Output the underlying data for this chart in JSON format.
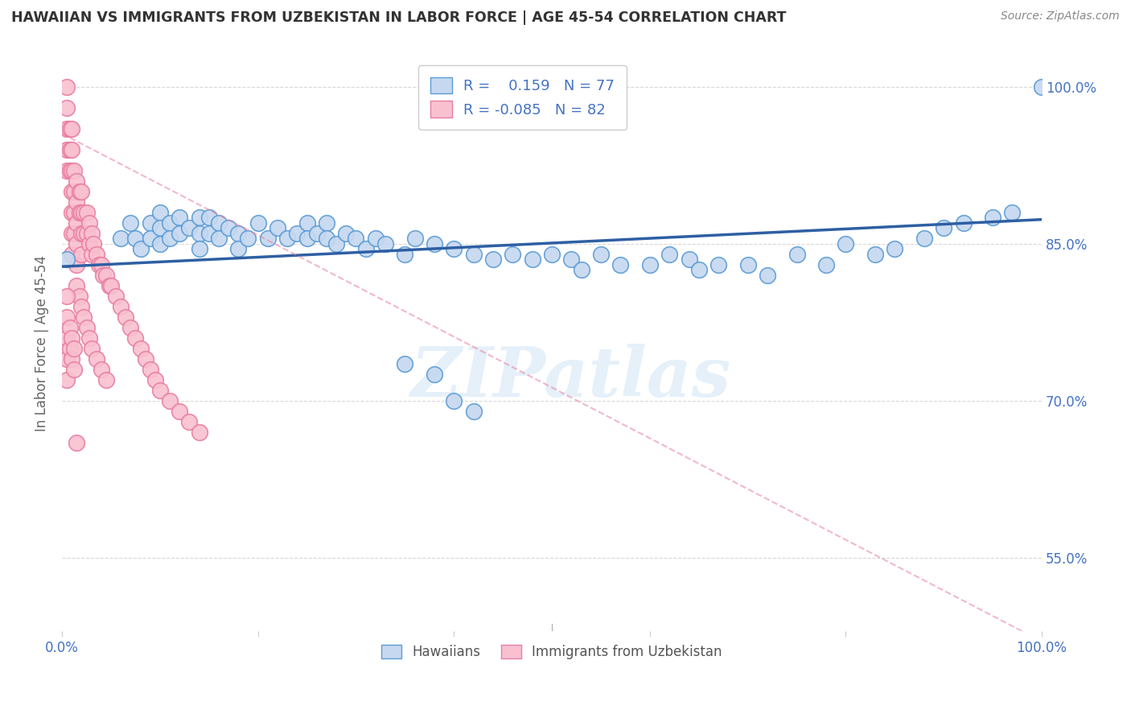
{
  "title": "HAWAIIAN VS IMMIGRANTS FROM UZBEKISTAN IN LABOR FORCE | AGE 45-54 CORRELATION CHART",
  "source": "Source: ZipAtlas.com",
  "ylabel": "In Labor Force | Age 45-54",
  "r_hawaiian": 0.159,
  "n_hawaiian": 77,
  "r_uzbekistan": -0.085,
  "n_uzbekistan": 82,
  "xlim": [
    0.0,
    1.0
  ],
  "ylim": [
    0.48,
    1.03
  ],
  "yticks": [
    0.55,
    0.7,
    0.85,
    1.0
  ],
  "ytick_labels": [
    "55.0%",
    "70.0%",
    "85.0%",
    "100.0%"
  ],
  "xticks": [
    0.0,
    0.2,
    0.4,
    0.6,
    0.8,
    1.0
  ],
  "xtick_labels": [
    "0.0%",
    "",
    "",
    "",
    "",
    "100.0%"
  ],
  "color_hawaiian": "#c5d8f0",
  "color_uzbekistan": "#f9c0d0",
  "edge_hawaiian": "#5b9bd5",
  "edge_uzbekistan": "#e87ea1",
  "line_hawaiian": "#2e5fa3",
  "line_uzbekistan": "#f4a7b9",
  "watermark_text": "ZIPatlas",
  "background_color": "#ffffff",
  "grid_color": "#d8d8d8",
  "hawaiian_x": [
    0.005,
    0.06,
    0.07,
    0.075,
    0.08,
    0.09,
    0.09,
    0.1,
    0.1,
    0.1,
    0.11,
    0.11,
    0.12,
    0.12,
    0.13,
    0.14,
    0.14,
    0.14,
    0.15,
    0.15,
    0.16,
    0.16,
    0.17,
    0.18,
    0.18,
    0.19,
    0.2,
    0.21,
    0.22,
    0.23,
    0.24,
    0.25,
    0.25,
    0.26,
    0.27,
    0.27,
    0.28,
    0.29,
    0.3,
    0.31,
    0.32,
    0.33,
    0.35,
    0.36,
    0.38,
    0.4,
    0.42,
    0.44,
    0.46,
    0.48,
    0.5,
    0.52,
    0.53,
    0.55,
    0.57,
    0.6,
    0.62,
    0.64,
    0.65,
    0.67,
    0.7,
    0.72,
    0.75,
    0.78,
    0.8,
    0.83,
    0.85,
    0.88,
    0.9,
    0.92,
    0.95,
    0.97,
    1.0,
    0.35,
    0.38,
    0.4,
    0.42
  ],
  "hawaiian_y": [
    0.835,
    0.855,
    0.87,
    0.855,
    0.845,
    0.87,
    0.855,
    0.88,
    0.865,
    0.85,
    0.87,
    0.855,
    0.875,
    0.86,
    0.865,
    0.875,
    0.86,
    0.845,
    0.875,
    0.86,
    0.87,
    0.855,
    0.865,
    0.86,
    0.845,
    0.855,
    0.87,
    0.855,
    0.865,
    0.855,
    0.86,
    0.87,
    0.855,
    0.86,
    0.87,
    0.855,
    0.85,
    0.86,
    0.855,
    0.845,
    0.855,
    0.85,
    0.84,
    0.855,
    0.85,
    0.845,
    0.84,
    0.835,
    0.84,
    0.835,
    0.84,
    0.835,
    0.825,
    0.84,
    0.83,
    0.83,
    0.84,
    0.835,
    0.825,
    0.83,
    0.83,
    0.82,
    0.84,
    0.83,
    0.85,
    0.84,
    0.845,
    0.855,
    0.865,
    0.87,
    0.875,
    0.88,
    1.0,
    0.735,
    0.725,
    0.7,
    0.69
  ],
  "uzbekistan_x": [
    0.005,
    0.005,
    0.005,
    0.005,
    0.005,
    0.008,
    0.008,
    0.008,
    0.01,
    0.01,
    0.01,
    0.01,
    0.01,
    0.01,
    0.01,
    0.012,
    0.012,
    0.012,
    0.012,
    0.015,
    0.015,
    0.015,
    0.015,
    0.015,
    0.018,
    0.018,
    0.02,
    0.02,
    0.02,
    0.02,
    0.022,
    0.022,
    0.025,
    0.025,
    0.028,
    0.028,
    0.03,
    0.03,
    0.032,
    0.035,
    0.038,
    0.04,
    0.042,
    0.045,
    0.048,
    0.05,
    0.055,
    0.06,
    0.065,
    0.07,
    0.075,
    0.08,
    0.085,
    0.09,
    0.095,
    0.1,
    0.11,
    0.12,
    0.13,
    0.14,
    0.015,
    0.018,
    0.02,
    0.022,
    0.025,
    0.028,
    0.03,
    0.035,
    0.04,
    0.045,
    0.005,
    0.005,
    0.005,
    0.005,
    0.005,
    0.008,
    0.008,
    0.01,
    0.01,
    0.012,
    0.012,
    0.015
  ],
  "uzbekistan_y": [
    1.0,
    0.98,
    0.96,
    0.94,
    0.92,
    0.96,
    0.94,
    0.92,
    0.96,
    0.94,
    0.92,
    0.9,
    0.88,
    0.86,
    0.84,
    0.92,
    0.9,
    0.88,
    0.86,
    0.91,
    0.89,
    0.87,
    0.85,
    0.83,
    0.9,
    0.88,
    0.9,
    0.88,
    0.86,
    0.84,
    0.88,
    0.86,
    0.88,
    0.86,
    0.87,
    0.85,
    0.86,
    0.84,
    0.85,
    0.84,
    0.83,
    0.83,
    0.82,
    0.82,
    0.81,
    0.81,
    0.8,
    0.79,
    0.78,
    0.77,
    0.76,
    0.75,
    0.74,
    0.73,
    0.72,
    0.71,
    0.7,
    0.69,
    0.68,
    0.67,
    0.81,
    0.8,
    0.79,
    0.78,
    0.77,
    0.76,
    0.75,
    0.74,
    0.73,
    0.72,
    0.8,
    0.78,
    0.76,
    0.74,
    0.72,
    0.77,
    0.75,
    0.76,
    0.74,
    0.75,
    0.73,
    0.66
  ],
  "legend1_label_blue": "R =    0.159   N = 77",
  "legend1_label_pink": "R = -0.085   N = 82",
  "legend2_label_blue": "Hawaiians",
  "legend2_label_pink": "Immigrants from Uzbekistan",
  "trend_blue_x0": 0.0,
  "trend_blue_y0": 0.828,
  "trend_blue_x1": 1.0,
  "trend_blue_y1": 0.873,
  "trend_pink_x0": 0.0,
  "trend_pink_y0": 0.955,
  "trend_pink_x1": 1.0,
  "trend_pink_y1": 0.47
}
